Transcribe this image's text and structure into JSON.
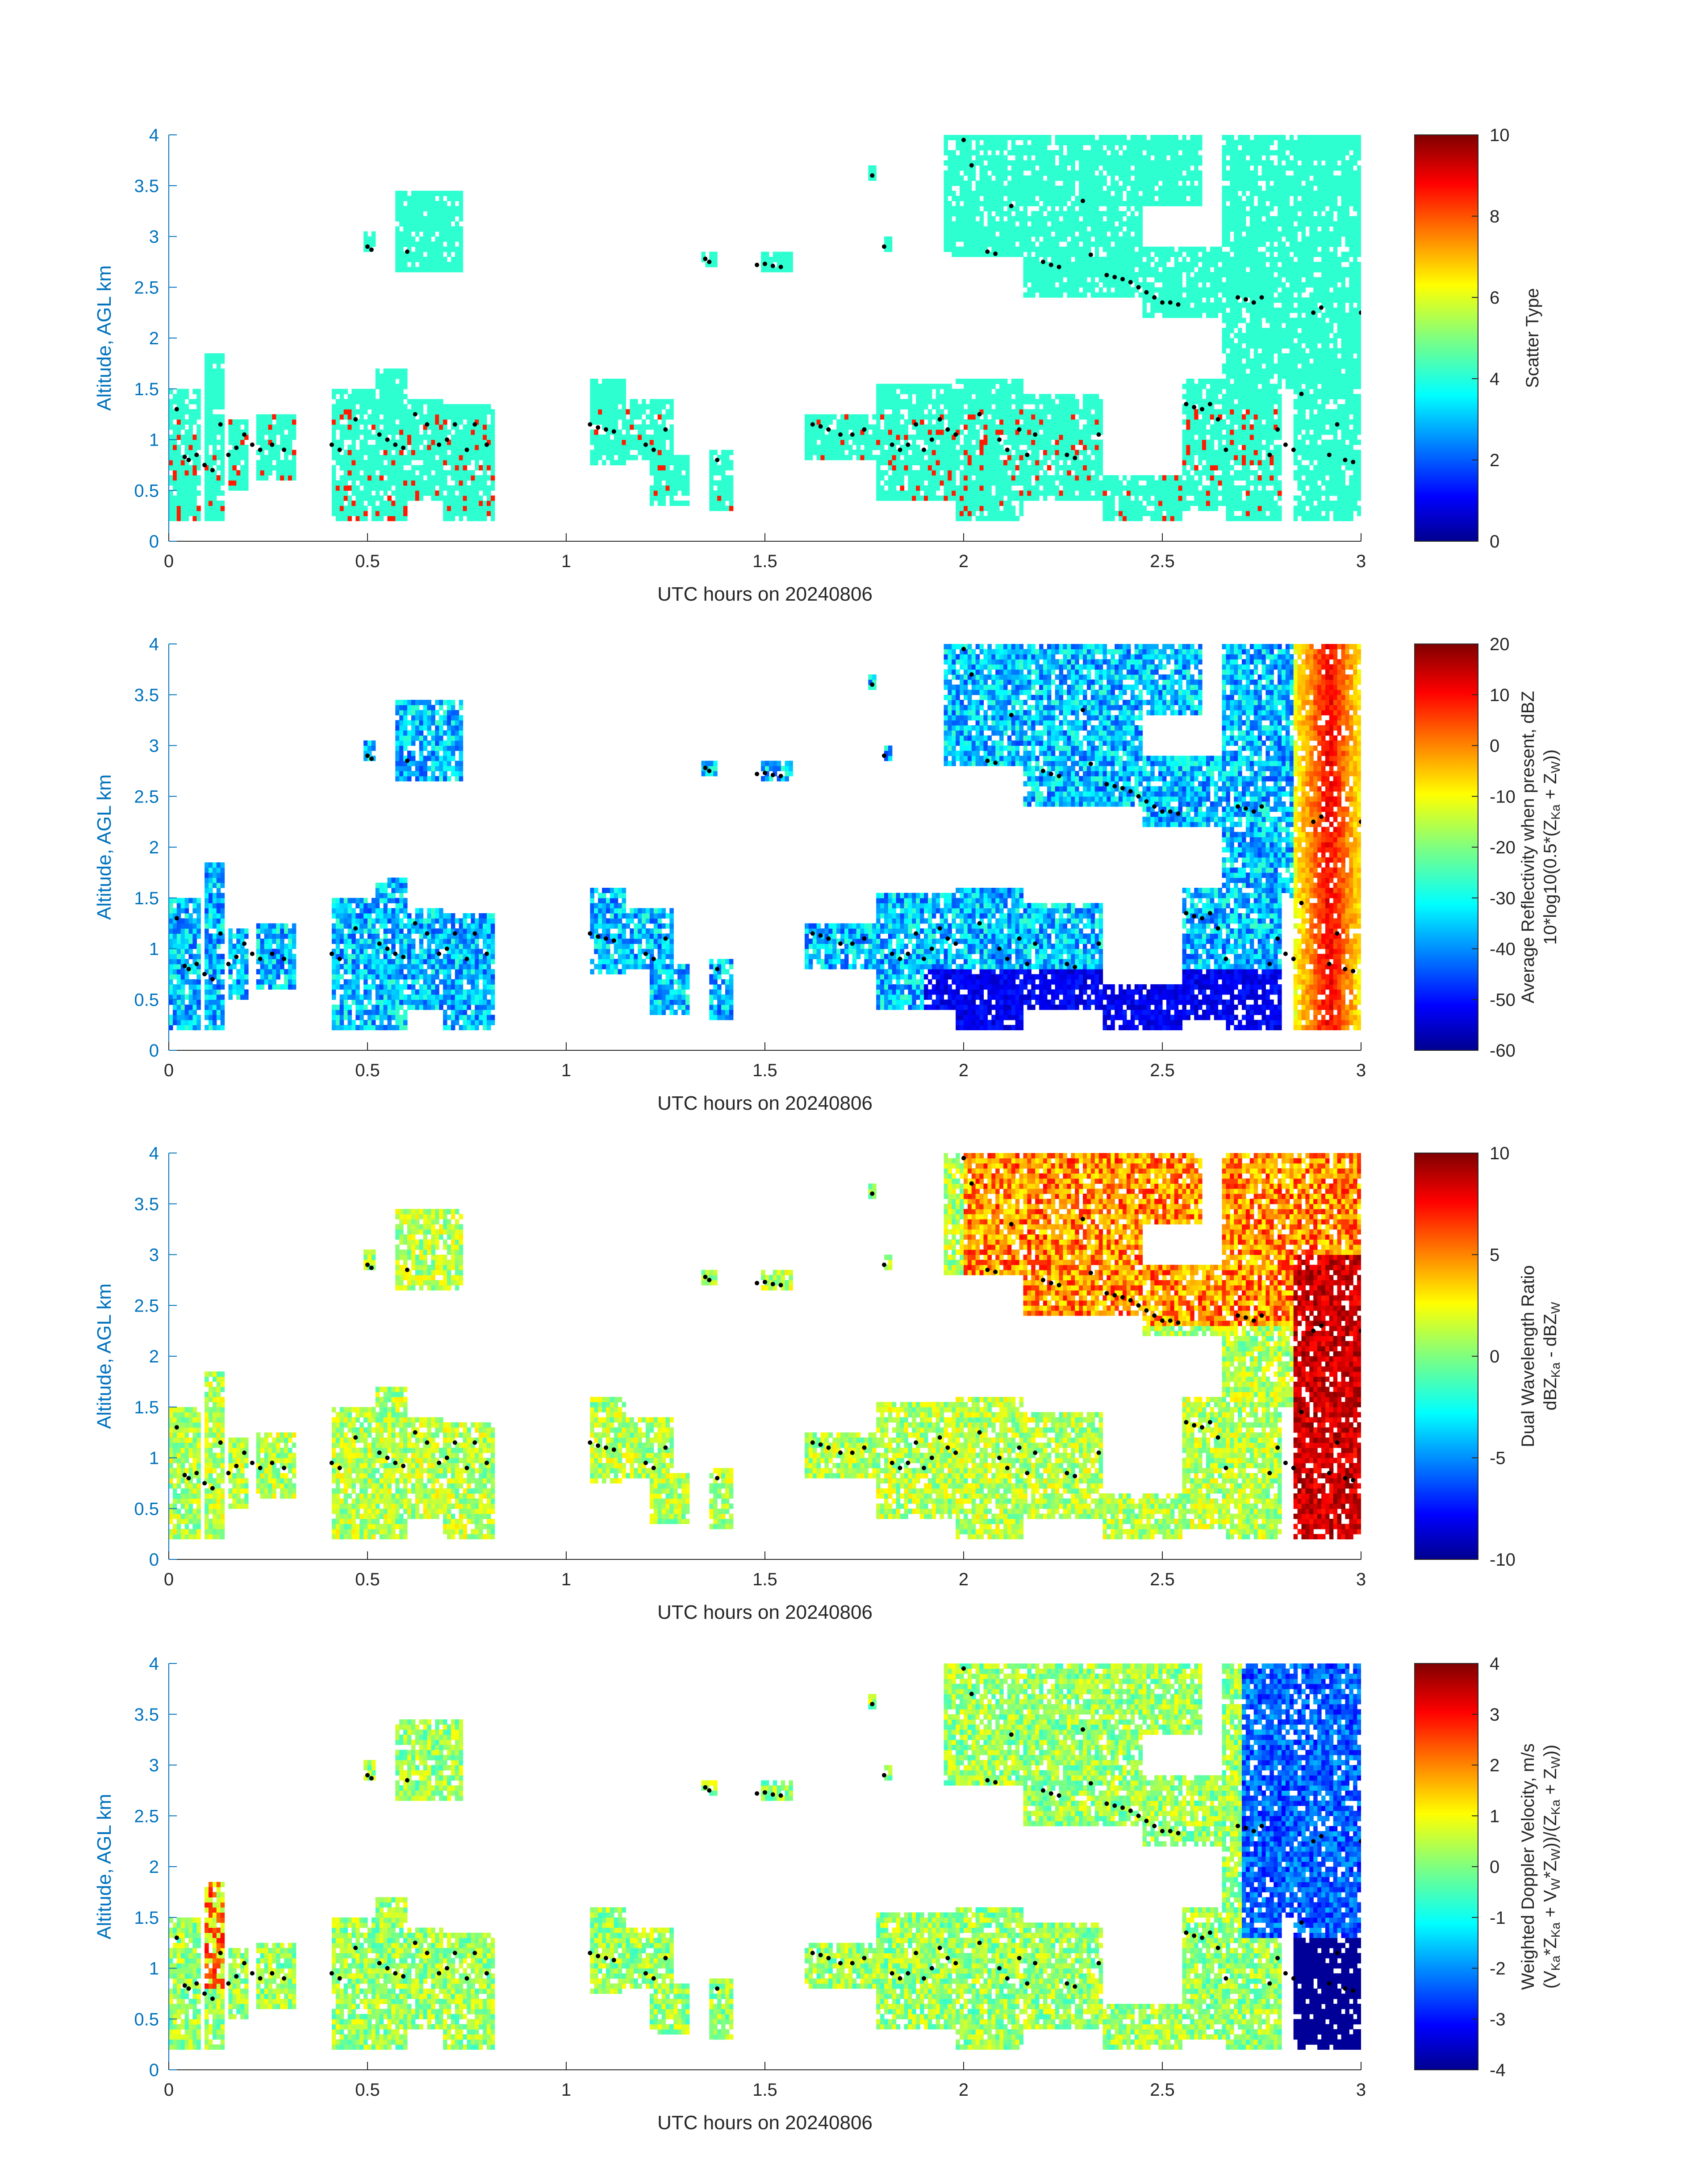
{
  "figure": {
    "panels_count": 4
  },
  "chart_data": [
    {
      "type": "heatmap",
      "xlabel": "UTC hours on 20240806",
      "ylabel": "Altitude, AGL km",
      "xlim": [
        0,
        3
      ],
      "ylim": [
        0,
        4
      ],
      "xticks": [
        "0",
        "0.5",
        "1",
        "1.5",
        "2",
        "2.5",
        "3"
      ],
      "yticks": [
        "0",
        "0.5",
        "1",
        "1.5",
        "2",
        "2.5",
        "3",
        "3.5",
        "4"
      ],
      "colorbar": {
        "label_lines": [
          "Scatter Type"
        ],
        "range": [
          0,
          10
        ],
        "ticks": [
          "0",
          "2",
          "4",
          "6",
          "8",
          "10"
        ]
      },
      "description_key": "scatter",
      "grid": false
    },
    {
      "type": "heatmap",
      "xlabel": "UTC hours on 20240806",
      "ylabel": "Altitude, AGL km",
      "xlim": [
        0,
        3
      ],
      "ylim": [
        0,
        4
      ],
      "xticks": [
        "0",
        "0.5",
        "1",
        "1.5",
        "2",
        "2.5",
        "3"
      ],
      "yticks": [
        "0",
        "0.5",
        "1",
        "1.5",
        "2",
        "2.5",
        "3",
        "3.5",
        "4"
      ],
      "colorbar": {
        "label_lines": [
          "Average Reflectivity when present, dBZ",
          "10*log10(0.5*(Z",
          "Ka",
          " + Z",
          "W",
          "))"
        ],
        "range": [
          -60,
          20
        ],
        "ticks": [
          "-60",
          "-50",
          "-40",
          "-30",
          "-20",
          "-10",
          "0",
          "10",
          "20"
        ]
      },
      "description_key": "reflectivity",
      "grid": false
    },
    {
      "type": "heatmap",
      "xlabel": "UTC hours on 20240806",
      "ylabel": "Altitude, AGL km",
      "xlim": [
        0,
        3
      ],
      "ylim": [
        0,
        4
      ],
      "xticks": [
        "0",
        "0.5",
        "1",
        "1.5",
        "2",
        "2.5",
        "3"
      ],
      "yticks": [
        "0",
        "0.5",
        "1",
        "1.5",
        "2",
        "2.5",
        "3",
        "3.5",
        "4"
      ],
      "colorbar": {
        "label_lines": [
          "Dual Wavelength Ratio",
          "dBZ",
          "Ka",
          " - dBZ",
          "W"
        ],
        "range": [
          -10,
          10
        ],
        "ticks": [
          "-10",
          "-5",
          "0",
          "5",
          "10"
        ]
      },
      "description_key": "dwr",
      "grid": false
    },
    {
      "type": "heatmap",
      "xlabel": "UTC hours on 20240806",
      "ylabel": "Altitude, AGL km",
      "xlim": [
        0,
        3
      ],
      "ylim": [
        0,
        4
      ],
      "xticks": [
        "0",
        "0.5",
        "1",
        "1.5",
        "2",
        "2.5",
        "3"
      ],
      "yticks": [
        "0",
        "0.5",
        "1",
        "1.5",
        "2",
        "2.5",
        "3",
        "3.5",
        "4"
      ],
      "colorbar": {
        "label_lines": [
          "Weighted Doppler Velocity, m/s",
          "(V",
          "Ka",
          "*Z",
          "Ka",
          " + V",
          "W",
          "*Z",
          "W",
          "))/(Z",
          "Ka",
          " + Z",
          "W",
          "))"
        ],
        "range": [
          -4,
          4
        ],
        "ticks": [
          "-4",
          "-3",
          "-2",
          "-1",
          "0",
          "1",
          "2",
          "3",
          "4"
        ]
      },
      "description_key": "velocity",
      "grid": false
    }
  ],
  "black_dots": [
    [
      0.02,
      1.3
    ],
    [
      0.04,
      0.83
    ],
    [
      0.05,
      0.8
    ],
    [
      0.07,
      0.85
    ],
    [
      0.09,
      0.75
    ],
    [
      0.11,
      0.7
    ],
    [
      0.13,
      1.15
    ],
    [
      0.15,
      0.85
    ],
    [
      0.17,
      0.92
    ],
    [
      0.19,
      1.05
    ],
    [
      0.21,
      0.95
    ],
    [
      0.23,
      0.9
    ],
    [
      0.26,
      0.95
    ],
    [
      0.29,
      0.9
    ],
    [
      0.41,
      0.95
    ],
    [
      0.43,
      0.9
    ],
    [
      0.47,
      1.2
    ],
    [
      0.5,
      2.9
    ],
    [
      0.51,
      2.87
    ],
    [
      0.53,
      1.05
    ],
    [
      0.55,
      1.0
    ],
    [
      0.57,
      0.95
    ],
    [
      0.59,
      0.92
    ],
    [
      0.6,
      2.85
    ],
    [
      0.62,
      1.25
    ],
    [
      0.65,
      1.15
    ],
    [
      0.68,
      0.95
    ],
    [
      0.7,
      1.0
    ],
    [
      0.72,
      1.15
    ],
    [
      0.75,
      0.9
    ],
    [
      0.77,
      1.15
    ],
    [
      0.8,
      0.95
    ],
    [
      1.06,
      1.15
    ],
    [
      1.08,
      1.12
    ],
    [
      1.1,
      1.1
    ],
    [
      1.12,
      1.08
    ],
    [
      1.2,
      0.95
    ],
    [
      1.22,
      0.9
    ],
    [
      1.25,
      1.1
    ],
    [
      1.35,
      2.78
    ],
    [
      1.36,
      2.75
    ],
    [
      1.38,
      0.8
    ],
    [
      1.48,
      2.72
    ],
    [
      1.5,
      2.73
    ],
    [
      1.52,
      2.71
    ],
    [
      1.54,
      2.7
    ],
    [
      1.62,
      1.15
    ],
    [
      1.64,
      1.13
    ],
    [
      1.66,
      1.1
    ],
    [
      1.69,
      1.05
    ],
    [
      1.72,
      1.05
    ],
    [
      1.75,
      1.1
    ],
    [
      1.77,
      3.6
    ],
    [
      1.8,
      2.9
    ],
    [
      1.82,
      0.95
    ],
    [
      1.84,
      0.9
    ],
    [
      1.86,
      0.95
    ],
    [
      1.88,
      1.15
    ],
    [
      1.9,
      0.9
    ],
    [
      1.92,
      1.0
    ],
    [
      1.94,
      1.2
    ],
    [
      1.96,
      1.1
    ],
    [
      1.98,
      1.05
    ],
    [
      2.0,
      3.95
    ],
    [
      2.02,
      3.7
    ],
    [
      2.04,
      1.25
    ],
    [
      2.06,
      2.85
    ],
    [
      2.08,
      2.83
    ],
    [
      2.09,
      1.0
    ],
    [
      2.11,
      0.9
    ],
    [
      2.12,
      3.3
    ],
    [
      2.14,
      1.1
    ],
    [
      2.16,
      0.85
    ],
    [
      2.18,
      1.05
    ],
    [
      2.2,
      2.75
    ],
    [
      2.22,
      2.72
    ],
    [
      2.24,
      2.7
    ],
    [
      2.26,
      0.85
    ],
    [
      2.28,
      0.82
    ],
    [
      2.3,
      3.35
    ],
    [
      2.32,
      2.82
    ],
    [
      2.34,
      1.05
    ],
    [
      2.36,
      2.62
    ],
    [
      2.38,
      2.6
    ],
    [
      2.4,
      2.58
    ],
    [
      2.42,
      2.55
    ],
    [
      2.44,
      2.5
    ],
    [
      2.46,
      2.45
    ],
    [
      2.48,
      2.4
    ],
    [
      2.5,
      2.35
    ],
    [
      2.52,
      2.35
    ],
    [
      2.54,
      2.33
    ],
    [
      2.56,
      1.35
    ],
    [
      2.58,
      1.32
    ],
    [
      2.6,
      1.3
    ],
    [
      2.62,
      1.35
    ],
    [
      2.64,
      1.2
    ],
    [
      2.66,
      0.9
    ],
    [
      2.69,
      2.4
    ],
    [
      2.71,
      2.38
    ],
    [
      2.73,
      2.35
    ],
    [
      2.75,
      2.4
    ],
    [
      2.77,
      0.85
    ],
    [
      2.79,
      1.1
    ],
    [
      2.81,
      0.95
    ],
    [
      2.83,
      0.9
    ],
    [
      2.85,
      1.45
    ],
    [
      2.88,
      2.25
    ],
    [
      2.9,
      2.3
    ],
    [
      2.92,
      0.85
    ],
    [
      2.94,
      1.15
    ],
    [
      2.96,
      0.8
    ],
    [
      2.98,
      0.78
    ],
    [
      3.0,
      2.25
    ]
  ]
}
